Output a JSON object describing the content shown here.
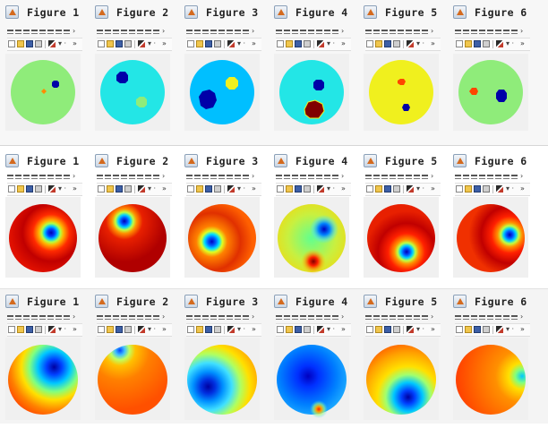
{
  "window_title_prefix": "Figure",
  "icons": {
    "app": "matlab-logo-icon",
    "toolbar": [
      "new-figure-icon",
      "open-file-icon",
      "save-icon",
      "print-icon",
      "brush-icon",
      "dropdown-arrow-icon",
      "more-tools-icon"
    ]
  },
  "toolbar": {
    "dropdown_glyph": "▾ ·",
    "more_glyph": "»"
  },
  "strips": [
    {
      "name": "segmentation",
      "windows": [
        {
          "title": "Figure 1",
          "background": "#8fec7a",
          "blobs": [
            {
              "color": "#0000a8"
            },
            {
              "color": "#ff8c00"
            }
          ]
        },
        {
          "title": "Figure 2",
          "background": "#23e6e6",
          "blobs": [
            {
              "color": "#0000a8"
            },
            {
              "color": "#8fec7a"
            }
          ]
        },
        {
          "title": "Figure 3",
          "background": "#00bfff",
          "blobs": [
            {
              "color": "#0000a8"
            },
            {
              "color": "#f0f01e"
            }
          ]
        },
        {
          "title": "Figure 4",
          "background": "#23e6e6",
          "blobs": [
            {
              "color": "#0000a8"
            },
            {
              "color": "#800000"
            }
          ]
        },
        {
          "title": "Figure 5",
          "background": "#f0f01e",
          "blobs": [
            {
              "color": "#ff4500"
            },
            {
              "color": "#0000a8"
            }
          ]
        },
        {
          "title": "Figure 6",
          "background": "#8fec7a",
          "blobs": [
            {
              "color": "#ff4500"
            },
            {
              "color": "#0000a8"
            }
          ]
        }
      ]
    },
    {
      "name": "reconstruction-a",
      "windows": [
        {
          "title": "Figure 1",
          "background": "#d80000"
        },
        {
          "title": "Figure 2",
          "background": "#cc0000"
        },
        {
          "title": "Figure 3",
          "background": "#e84a00"
        },
        {
          "title": "Figure 4",
          "background": "#c8f040"
        },
        {
          "title": "Figure 5",
          "background": "#d80000"
        },
        {
          "title": "Figure 6",
          "background": "#dc1000"
        }
      ]
    },
    {
      "name": "reconstruction-b",
      "windows": [
        {
          "title": "Figure 1",
          "background": "#ffa000"
        },
        {
          "title": "Figure 2",
          "background": "#ff7000"
        },
        {
          "title": "Figure 3",
          "background": "#ffd000"
        },
        {
          "title": "Figure 4",
          "background": "#1470ff"
        },
        {
          "title": "Figure 5",
          "background": "#ffd040"
        },
        {
          "title": "Figure 6",
          "background": "#ff7a00"
        }
      ]
    }
  ]
}
